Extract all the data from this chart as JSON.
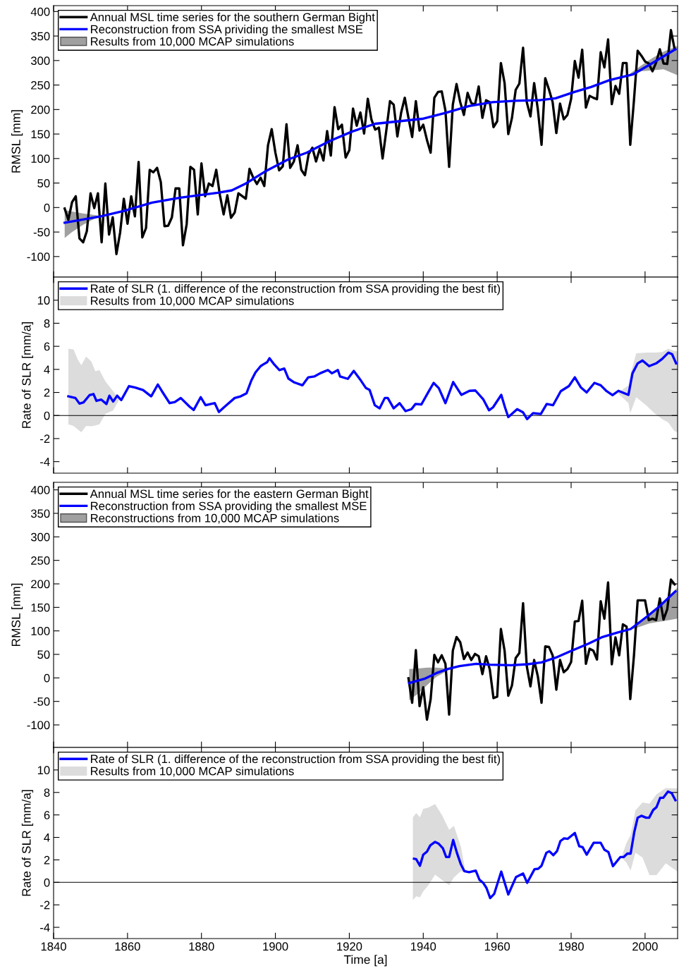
{
  "chart_data": [
    {
      "type": "line",
      "ylabel": "RMSL [mm]",
      "xlim": [
        1840,
        2008.8
      ],
      "xticks": [
        1840,
        1860,
        1880,
        1900,
        1920,
        1940,
        1960,
        1980,
        2000
      ],
      "ylim": [
        -142,
        412
      ],
      "yticks": [
        -100,
        -50,
        0,
        50,
        100,
        150,
        200,
        250,
        300,
        350,
        400
      ],
      "tick_labels": "y",
      "legend": "top left",
      "series": [
        {
          "name": "Annual MSL time series for the southern German Bight",
          "color": "#000000",
          "x": [
            1843,
            1844,
            1845,
            1846,
            1847,
            1848,
            1849,
            1850,
            1851,
            1852,
            1853,
            1854,
            1855,
            1856,
            1857,
            1858,
            1859,
            1860,
            1861,
            1862,
            1863,
            1864,
            1865,
            1866,
            1867,
            1868,
            1869,
            1870,
            1871,
            1872,
            1873,
            1874,
            1875,
            1876,
            1877,
            1878,
            1879,
            1880,
            1881,
            1882,
            1883,
            1884,
            1885,
            1886,
            1887,
            1888,
            1889,
            1890,
            1892,
            1893,
            1894,
            1895,
            1896,
            1897,
            1898,
            1899,
            1900,
            1901,
            1902,
            1903,
            1904,
            1905,
            1906,
            1907,
            1908,
            1909,
            1910,
            1911,
            1912,
            1913,
            1914,
            1915,
            1916,
            1917,
            1918,
            1919,
            1920,
            1921,
            1922,
            1923,
            1924,
            1925,
            1926,
            1927,
            1928,
            1929,
            1930,
            1931,
            1932,
            1933,
            1934,
            1935,
            1936,
            1937,
            1938,
            1939,
            1940,
            1941,
            1942,
            1943,
            1944,
            1945,
            1946,
            1947,
            1948,
            1949,
            1950,
            1951,
            1952,
            1953,
            1954,
            1955,
            1956,
            1957,
            1958,
            1959,
            1960,
            1961,
            1962,
            1963,
            1964,
            1965,
            1966,
            1967,
            1968,
            1969,
            1970,
            1971,
            1972,
            1973,
            1974,
            1975,
            1976,
            1977,
            1978,
            1979,
            1980,
            1981,
            1982,
            1983,
            1984,
            1985,
            1986,
            1987,
            1988,
            1989,
            1990,
            1991,
            1992,
            1993,
            1994,
            1995,
            1996,
            1997,
            1998,
            1999,
            2000,
            2001,
            2002,
            2003,
            2004,
            2005,
            2006,
            2007,
            2008
          ],
          "values": [
            -2,
            -25,
            11,
            23,
            -63,
            -71,
            -48,
            29,
            -1,
            29,
            -71,
            49,
            -55,
            -20,
            -95,
            -51,
            18,
            -33,
            23,
            -18,
            93,
            -61,
            -42,
            77,
            72,
            81,
            52,
            -38,
            -37,
            -20,
            39,
            39,
            -77,
            -34,
            83,
            77,
            -14,
            90,
            23,
            49,
            44,
            77,
            25,
            -14,
            25,
            -21,
            -10,
            29,
            18,
            79,
            61,
            48,
            61,
            44,
            127,
            160,
            112,
            76,
            84,
            170,
            81,
            94,
            127,
            77,
            66,
            109,
            122,
            94,
            120,
            96,
            156,
            106,
            205,
            160,
            169,
            102,
            117,
            202,
            167,
            194,
            151,
            222,
            179,
            159,
            163,
            100,
            157,
            217,
            210,
            145,
            193,
            224,
            183,
            144,
            217,
            157,
            169,
            138,
            112,
            224,
            236,
            237,
            198,
            83,
            210,
            252,
            215,
            189,
            234,
            213,
            210,
            247,
            183,
            219,
            215,
            164,
            176,
            295,
            254,
            150,
            183,
            240,
            253,
            326,
            215,
            186,
            254,
            200,
            128,
            264,
            241,
            215,
            152,
            212,
            180,
            189,
            222,
            299,
            265,
            322,
            204,
            228,
            224,
            221,
            317,
            286,
            343,
            211,
            248,
            232,
            295,
            295,
            128,
            219,
            320,
            310,
            298,
            294,
            278,
            296,
            323,
            294,
            293,
            362,
            323
          ]
        },
        {
          "name": "Reconstruction from SSA prividing the smallest MSE",
          "color": "#0000ff",
          "x": [
            1843,
            1852.7,
            1859,
            1866.6,
            1874.2,
            1884.4,
            1888.2,
            1892,
            1897.1,
            1903.4,
            1908.5,
            1914.8,
            1920.7,
            1927,
            1933.4,
            1939.7,
            1946,
            1952.4,
            1958.7,
            1965,
            1971.4,
            1975.8,
            1980.9,
            1985.4,
            1990.4,
            1996.8,
            2001.8,
            2008.2
          ],
          "values": [
            -31,
            -18,
            -7,
            10,
            20,
            30,
            35,
            49,
            73,
            98,
            112,
            136,
            155,
            171,
            176,
            181,
            193,
            207,
            215,
            218,
            219,
            223,
            236,
            246,
            260,
            272,
            294,
            323
          ]
        },
        {
          "name": "Results from 10,000 MCAP simulations",
          "type": "area",
          "color": "#a0a0a0",
          "x": [
            1843,
            1845,
            1848,
            1850,
            1852.5,
            1852.5,
            1850,
            1848,
            1845,
            1843
          ],
          "values": [
            -5,
            -8,
            -12,
            -14,
            -17,
            -18,
            -27,
            -35,
            -50,
            -62
          ]
        },
        {
          "type": "area",
          "color": "#a0a0a0",
          "x": [
            1996,
            1999,
            2002,
            2005,
            2008.8,
            2008.8,
            2005,
            2002,
            1999,
            1996
          ],
          "values": [
            274,
            290,
            305,
            318,
            330,
            270,
            282,
            280,
            278,
            270
          ]
        }
      ]
    },
    {
      "type": "line",
      "ylabel": "Rate of SLR [mm/a]",
      "xlim": [
        1840,
        2008.8
      ],
      "xticks": [
        1840,
        1860,
        1880,
        1900,
        1920,
        1940,
        1960,
        1980,
        2000
      ],
      "ylim": [
        -5,
        12
      ],
      "yticks": [
        -4,
        -2,
        0,
        2,
        4,
        6,
        8,
        10
      ],
      "tick_labels": "y",
      "legend": "top left",
      "ref_lines": [
        {
          "axis": "y",
          "value": 0,
          "color": "#000000"
        }
      ],
      "series": [
        {
          "name": "Rate of SLR (1. difference of the reconstruction from SSA providing the best fit)",
          "color": "#0000ff",
          "x": [
            1844.0,
            1845.9,
            1847.0,
            1848.1,
            1849.7,
            1850.8,
            1851.6,
            1852.9,
            1854.3,
            1855.1,
            1856.1,
            1857.2,
            1858.3,
            1860.4,
            1862.1,
            1864.2,
            1866.4,
            1868.2,
            1869.3,
            1871.4,
            1872.8,
            1874.4,
            1876.8,
            1877.9,
            1879.8,
            1881.1,
            1883.6,
            1884.7,
            1886.5,
            1889.0,
            1890.6,
            1892.2,
            1893.5,
            1894.6,
            1896.0,
            1896.7,
            1897.8,
            1898.4,
            1899.7,
            1901.1,
            1902.4,
            1903.5,
            1905.1,
            1907.3,
            1908.9,
            1910.5,
            1912.1,
            1914.2,
            1915.3,
            1916.9,
            1917.5,
            1919.6,
            1921.2,
            1922.9,
            1924.5,
            1925.5,
            1926.9,
            1928.2,
            1929.6,
            1930.4,
            1932.0,
            1933.6,
            1935.2,
            1936.8,
            1937.9,
            1939.5,
            1941.2,
            1942.8,
            1944.2,
            1946.0,
            1948.1,
            1950.3,
            1952.5,
            1954.1,
            1956.2,
            1957.8,
            1958.9,
            1961.1,
            1962.1,
            1963.0,
            1965.4,
            1967.0,
            1968.1,
            1969.7,
            1971.8,
            1973.4,
            1975.1,
            1977.2,
            1979.4,
            1981.0,
            1982.6,
            1984.2,
            1986.3,
            1988.0,
            1989.6,
            1991.2,
            1992.8,
            1995.5,
            1996.6,
            1998.0,
            1999.3,
            2001.1,
            2003.0,
            2004.6,
            2006.3,
            2007.3,
            2008.4
          ],
          "values": [
            1.66,
            1.52,
            1.03,
            1.14,
            1.76,
            1.86,
            1.27,
            1.38,
            1.0,
            1.72,
            1.21,
            1.72,
            1.34,
            2.55,
            2.42,
            2.21,
            1.66,
            2.69,
            2.11,
            1.07,
            1.17,
            1.52,
            0.76,
            0.48,
            1.59,
            0.89,
            1.07,
            0.31,
            0.83,
            1.52,
            1.66,
            1.93,
            3.04,
            3.73,
            4.28,
            4.42,
            4.63,
            4.97,
            4.42,
            3.94,
            4.07,
            3.21,
            2.87,
            2.62,
            3.31,
            3.38,
            3.66,
            3.94,
            3.66,
            3.94,
            3.38,
            3.18,
            3.87,
            3.14,
            2.38,
            2.21,
            0.89,
            0.62,
            1.52,
            1.52,
            0.62,
            1.07,
            0.38,
            0.55,
            1.0,
            0.96,
            1.93,
            2.83,
            2.38,
            1.07,
            2.9,
            1.79,
            2.14,
            2.17,
            1.42,
            0.45,
            0.72,
            1.79,
            0.72,
            -0.14,
            0.55,
            0.27,
            -0.31,
            0.21,
            0.13,
            1.0,
            0.89,
            2.11,
            2.55,
            3.31,
            2.45,
            2.0,
            2.83,
            2.62,
            2.11,
            1.76,
            2.14,
            1.79,
            3.66,
            4.52,
            4.77,
            4.28,
            4.52,
            4.9,
            5.45,
            5.32,
            4.52
          ]
        },
        {
          "name": "Results from 10,000 MCAP simulations",
          "type": "area",
          "color": "#dcdcdc",
          "x": [
            1844,
            1845.4,
            1846.5,
            1847.5,
            1848.8,
            1850.2,
            1851.3,
            1852.4,
            1854,
            1856.1,
            1857.8,
            1856.1,
            1854,
            1852.4,
            1851.3,
            1850.2,
            1848.8,
            1847.5,
            1846.5,
            1845.4,
            1844
          ],
          "values": [
            5.8,
            5.73,
            4.87,
            4.35,
            5.11,
            4.7,
            3.83,
            3.94,
            2.97,
            2.11,
            1.41,
            0.45,
            0.13,
            -0.76,
            -0.85,
            -0.94,
            -0.9,
            -1.46,
            -1.2,
            -0.9,
            -0.76
          ]
        },
        {
          "type": "area",
          "color": "#dcdcdc",
          "x": [
            1992.8,
            1995.5,
            1996,
            1997.6,
            2000.3,
            2002.5,
            2004.6,
            2006.3,
            2007.9,
            2008.8,
            2008.8,
            2007.9,
            2006.3,
            2004.6,
            2002.5,
            2000.3,
            1997.6,
            1996,
            1995.5,
            1992.8
          ],
          "values": [
            2.0,
            2.62,
            3.5,
            5.39,
            5.46,
            5.45,
            5.5,
            5.8,
            5.6,
            5.56,
            -1.46,
            -1.35,
            -0.62,
            -0.31,
            0.21,
            0.89,
            1.59,
            0.21,
            1.07,
            1.9
          ]
        }
      ]
    },
    {
      "type": "line",
      "ylabel": "RMSL [mm]",
      "xlim": [
        1840,
        2008.8
      ],
      "xticks": [
        1840,
        1860,
        1880,
        1900,
        1920,
        1940,
        1960,
        1980,
        2000
      ],
      "ylim": [
        -148,
        416
      ],
      "yticks": [
        -100,
        -50,
        0,
        50,
        100,
        150,
        200,
        250,
        300,
        350,
        400
      ],
      "tick_labels": "y",
      "legend": "top left",
      "series": [
        {
          "name": "Annual MSL time series for the eastern German Bight",
          "color": "#000000",
          "x": [
            1936,
            1937,
            1938,
            1939,
            1940,
            1941,
            1942,
            1943,
            1944,
            1945,
            1946,
            1947,
            1948,
            1949,
            1950,
            1951,
            1952,
            1953,
            1954,
            1955,
            1956,
            1957,
            1958,
            1959,
            1960,
            1961,
            1962,
            1963,
            1964,
            1965,
            1966,
            1967,
            1968,
            1969,
            1970,
            1971,
            1972,
            1973,
            1974,
            1975,
            1976,
            1977,
            1978,
            1979,
            1980,
            1981,
            1982,
            1983,
            1984,
            1985,
            1986,
            1987,
            1988,
            1989,
            1990,
            1991,
            1992,
            1993,
            1994,
            1995,
            1996,
            1997,
            1998,
            1999,
            2000,
            2001,
            2002,
            2003,
            2004,
            2005,
            2006,
            2007,
            2008
          ],
          "values": [
            -1,
            -53,
            59,
            -60,
            -20,
            -89,
            -45,
            49,
            33,
            48,
            30,
            -78,
            58,
            87,
            76,
            40,
            54,
            38,
            51,
            46,
            8,
            46,
            18,
            -43,
            -40,
            104,
            58,
            -38,
            -16,
            42,
            53,
            159,
            25,
            -18,
            38,
            3,
            -53,
            67,
            66,
            48,
            -25,
            38,
            12,
            19,
            34,
            120,
            121,
            164,
            30,
            62,
            58,
            39,
            163,
            126,
            203,
            29,
            86,
            48,
            114,
            109,
            -45,
            48,
            165,
            165,
            165,
            123,
            126,
            123,
            169,
            124,
            146,
            209,
            199
          ]
        },
        {
          "name": "Reconstruction from SSA providing the smallest MSE",
          "color": "#0000ff",
          "x": [
            1936.2,
            1940.3,
            1943.5,
            1946.7,
            1949.8,
            1954.3,
            1958.1,
            1963.8,
            1968.2,
            1972,
            1975.8,
            1979.6,
            1984.7,
            1988.5,
            1992.3,
            1996.1,
            2000.6,
            2003.7,
            2008.2
          ],
          "values": [
            -11,
            -2,
            10,
            19,
            25,
            30,
            28,
            27,
            29,
            33,
            43,
            56,
            73,
            87,
            96,
            104,
            131,
            151,
            184
          ]
        },
        {
          "name": "Reconstructions from 10,000 MCAP simulations",
          "type": "area",
          "color": "#a0a0a0",
          "x": [
            1936.2,
            1938.5,
            1941.1,
            1943.5,
            1946.7,
            1946.7,
            1943.5,
            1941.1,
            1938.5,
            1936.2
          ],
          "values": [
            19,
            20,
            22,
            22,
            20,
            16,
            2,
            -15,
            -34,
            -48
          ]
        },
        {
          "type": "area",
          "color": "#a0a0a0",
          "x": [
            1996.8,
            2001.2,
            2005,
            2008.8,
            2008.8,
            2005,
            2001.2,
            1996.8
          ],
          "values": [
            106,
            133,
            160,
            192,
            126,
            121,
            116,
            104
          ]
        }
      ]
    },
    {
      "type": "line",
      "ylabel": "Rate of SLR [mm/a]",
      "xlabel": "Time [a]",
      "xlim": [
        1840,
        2008.8
      ],
      "xticks": [
        1840,
        1860,
        1880,
        1900,
        1920,
        1940,
        1960,
        1980,
        2000
      ],
      "ylim": [
        -5,
        12
      ],
      "yticks": [
        -4,
        -2,
        0,
        2,
        4,
        6,
        8,
        10
      ],
      "legend": "top left",
      "ref_lines": [
        {
          "axis": "y",
          "value": 0,
          "color": "#000000"
        }
      ],
      "series": [
        {
          "name": "Rate of SLR (1. difference of the reconstruction from SSA providing the best fit)",
          "color": "#0000ff",
          "x": [
            1937.5,
            1938.1,
            1939.1,
            1940,
            1941,
            1941.9,
            1943.2,
            1944.1,
            1945.3,
            1946.2,
            1947,
            1948.1,
            1949.1,
            1950.2,
            1951.1,
            1952.4,
            1954.2,
            1955.2,
            1956.2,
            1957.1,
            1958.1,
            1959.2,
            1961.1,
            1963,
            1965.1,
            1967,
            1968.1,
            1970.1,
            1971.1,
            1972,
            1973.3,
            1974.1,
            1975.2,
            1976.2,
            1977.1,
            1978.1,
            1979.1,
            1981,
            1982.2,
            1983.1,
            1984.2,
            1986.1,
            1988,
            1989,
            1990.1,
            1991.3,
            1993.3,
            1994.2,
            1995.2,
            1996.1,
            1997.1,
            1998,
            1999,
            2000.3,
            2001.1,
            2002.2,
            2003.1,
            2004.1,
            2004.9,
            2006.2,
            2007.2,
            2008.2
          ],
          "values": [
            2.1,
            2.06,
            1.48,
            2.46,
            2.73,
            3.29,
            3.6,
            3.46,
            3.04,
            2.25,
            2.25,
            3.77,
            2.63,
            1.58,
            1.0,
            0.9,
            1.04,
            0.23,
            -0.04,
            -0.5,
            -1.4,
            -1.02,
            0.96,
            -1.08,
            0.48,
            0.79,
            -0.04,
            1.17,
            1.21,
            1.48,
            2.63,
            2.77,
            2.42,
            2.79,
            3.67,
            3.92,
            3.87,
            4.4,
            3.21,
            3.13,
            2.46,
            3.52,
            3.52,
            2.9,
            2.69,
            1.44,
            2.25,
            2.25,
            2.56,
            2.56,
            4.5,
            5.75,
            5.92,
            5.75,
            5.75,
            6.44,
            6.69,
            7.52,
            7.52,
            8.08,
            7.94,
            7.31
          ]
        },
        {
          "name": "Results from 10,000 MCAP simulations",
          "type": "area",
          "color": "#dcdcdc",
          "x": [
            1937.2,
            1938.1,
            1939.1,
            1940,
            1941.3,
            1943.2,
            1945.1,
            1947,
            1948.3,
            1950.2,
            1951.4,
            1951.4,
            1950.2,
            1948.3,
            1947,
            1945.1,
            1943.2,
            1941.3,
            1940,
            1939.1,
            1938.1,
            1937.2
          ],
          "values": [
            5.79,
            6.17,
            5.79,
            6.54,
            6.63,
            6.96,
            5.96,
            4.67,
            5.02,
            3.15,
            0.95,
            0.85,
            1.0,
            0.44,
            -0.25,
            0.2,
            0.69,
            -0.3,
            -0.8,
            -1.33,
            -1.23,
            -1.58
          ]
        },
        {
          "type": "area",
          "color": "#dcdcdc",
          "x": [
            1993.6,
            1994.9,
            1996.1,
            1997.4,
            1999.3,
            2001.2,
            2003.1,
            2005.6,
            2008.8,
            2008.8,
            2005.6,
            2003.1,
            2001.2,
            1999.3,
            1997.4,
            1996.1,
            1994.9,
            1993.6
          ],
          "values": [
            2.2,
            3.46,
            4.2,
            6.4,
            7.1,
            7.0,
            7.83,
            8.4,
            8.35,
            0.96,
            1.69,
            0.65,
            0.65,
            2.21,
            2.63,
            1.06,
            1.79,
            2.2
          ]
        }
      ]
    }
  ]
}
